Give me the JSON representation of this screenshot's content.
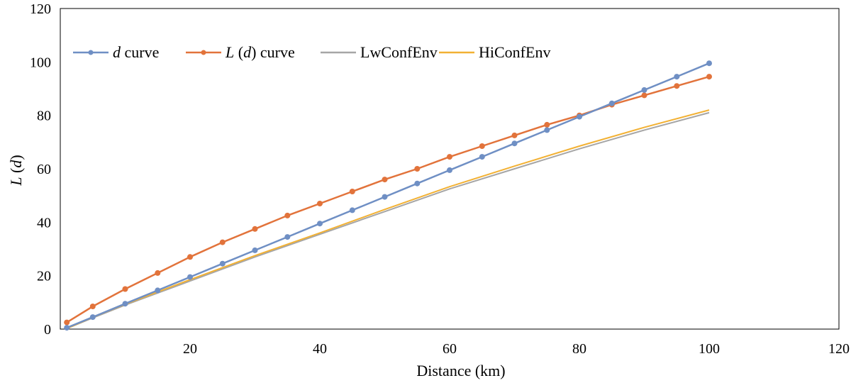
{
  "chart_data": {
    "type": "line",
    "xlabel": "Distance (km)",
    "ylabel": "L (d)",
    "xlim": [
      0,
      120
    ],
    "ylim": [
      0,
      120
    ],
    "x_ticks": [
      20,
      40,
      60,
      80,
      100,
      120
    ],
    "y_ticks": [
      0,
      20,
      40,
      60,
      80,
      100,
      120
    ],
    "grid": false,
    "legend_position": "top-left",
    "series": [
      {
        "name": "d curve",
        "color": "#6f8fc4",
        "marker": "circle",
        "x": [
          1,
          5,
          10,
          15,
          20,
          25,
          30,
          35,
          40,
          45,
          50,
          55,
          60,
          65,
          70,
          75,
          80,
          85,
          90,
          95,
          100
        ],
        "y": [
          0.5,
          4.5,
          9.5,
          14.5,
          19.5,
          24.5,
          29.5,
          34.5,
          39.5,
          44.5,
          49.5,
          54.5,
          59.5,
          64.5,
          69.5,
          74.5,
          79.5,
          84.5,
          89.5,
          94.5,
          99.5
        ]
      },
      {
        "name": "L (d) curve",
        "color": "#e2733b",
        "marker": "circle",
        "x": [
          1,
          5,
          10,
          15,
          20,
          25,
          30,
          35,
          40,
          45,
          50,
          55,
          60,
          65,
          70,
          75,
          80,
          85,
          90,
          95,
          100
        ],
        "y": [
          2.5,
          8.5,
          15,
          21,
          27,
          32.5,
          37.5,
          42.5,
          47,
          51.5,
          56,
          60,
          64.5,
          68.5,
          72.5,
          76.5,
          80,
          84,
          87.5,
          91,
          94.5
        ]
      },
      {
        "name": "LwConfEnv",
        "color": "#a6a6a6",
        "marker": "none",
        "x": [
          1,
          5,
          10,
          20,
          30,
          40,
          50,
          60,
          70,
          80,
          90,
          100
        ],
        "y": [
          0.2,
          4.2,
          9,
          18,
          27,
          35.5,
          44,
          52.5,
          60,
          67.5,
          74.5,
          81
        ]
      },
      {
        "name": "HiConfEnv",
        "color": "#f2b134",
        "marker": "none",
        "x": [
          1,
          5,
          10,
          20,
          30,
          40,
          50,
          60,
          70,
          80,
          90,
          100
        ],
        "y": [
          0.2,
          4.4,
          9.3,
          18.5,
          27.5,
          36,
          44.8,
          53.3,
          61,
          68.5,
          75.5,
          82
        ]
      }
    ],
    "legend": [
      {
        "prefix": "d",
        "suffix": " curve"
      },
      {
        "prefix": "L",
        "middle": " (",
        "var": "d",
        "suffix": ") curve"
      },
      {
        "prefix": "",
        "suffix": "LwConfEnv"
      },
      {
        "prefix": "",
        "suffix": "HiConfEnv"
      }
    ]
  }
}
